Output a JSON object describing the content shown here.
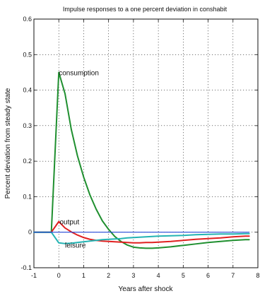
{
  "chart_data": {
    "type": "line",
    "title": "Impulse responses to a one percent deviation in conshabit",
    "xlabel": "Years after shock",
    "ylabel": "Percent deviation from steady state",
    "xlim": [
      -1,
      8
    ],
    "ylim": [
      -0.1,
      0.6
    ],
    "xticks": [
      -1,
      0,
      1,
      2,
      3,
      4,
      5,
      6,
      7,
      8
    ],
    "xtick_labels": [
      "-1",
      "0",
      "1",
      "2",
      "3",
      "4",
      "5",
      "6",
      "7",
      "8"
    ],
    "yticks": [
      -0.1,
      0,
      0.1,
      0.2,
      0.3,
      0.4,
      0.5,
      0.6
    ],
    "ytick_labels": [
      "-0.1",
      "0",
      "0.1",
      "0.2",
      "0.3",
      "0.4",
      "0.5",
      "0.6"
    ],
    "grid": true,
    "zero_line": true,
    "annotations": [
      {
        "text": "consumption",
        "x": 0.0,
        "y": 0.45
      },
      {
        "text": "output",
        "x": -0.05,
        "y": 0.03
      },
      {
        "text": "leisure",
        "x": 0.25,
        "y": -0.035
      }
    ],
    "series": [
      {
        "color": "#1f8f2f",
        "x": [
          -1,
          -0.3,
          0,
          0.25,
          0.5,
          0.75,
          1,
          1.25,
          1.5,
          1.75,
          2,
          2.25,
          2.5,
          2.75,
          3,
          3.25,
          3.5,
          3.75,
          4,
          4.5,
          5,
          5.5,
          6,
          6.5,
          7,
          7.5,
          7.65
        ],
        "y": [
          0.0,
          0.0,
          0.45,
          0.39,
          0.29,
          0.215,
          0.155,
          0.105,
          0.065,
          0.032,
          0.008,
          -0.012,
          -0.026,
          -0.036,
          -0.042,
          -0.044,
          -0.045,
          -0.045,
          -0.044,
          -0.041,
          -0.037,
          -0.033,
          -0.029,
          -0.026,
          -0.023,
          -0.021,
          -0.021
        ]
      },
      {
        "color": "#e02020",
        "x": [
          -1,
          -0.3,
          0,
          0.25,
          0.5,
          0.75,
          1,
          1.25,
          1.5,
          1.75,
          2,
          2.25,
          2.5,
          2.75,
          3,
          3.25,
          3.5,
          3.75,
          4,
          4.5,
          5,
          5.5,
          6,
          6.5,
          7,
          7.5,
          7.65
        ],
        "y": [
          0.0,
          0.0,
          0.03,
          0.012,
          0.001,
          -0.008,
          -0.015,
          -0.02,
          -0.023,
          -0.025,
          -0.026,
          -0.027,
          -0.028,
          -0.029,
          -0.03,
          -0.03,
          -0.029,
          -0.029,
          -0.028,
          -0.026,
          -0.023,
          -0.02,
          -0.018,
          -0.016,
          -0.013,
          -0.011,
          -0.011
        ]
      },
      {
        "color": "#23b3b3",
        "x": [
          -1,
          -0.3,
          0,
          0.25,
          0.5,
          0.75,
          1,
          1.25,
          1.5,
          1.75,
          2,
          2.25,
          2.5,
          2.75,
          3,
          3.5,
          4,
          4.5,
          5,
          5.5,
          6,
          6.5,
          7,
          7.5,
          7.65
        ],
        "y": [
          0.0,
          0.0,
          -0.03,
          -0.032,
          -0.031,
          -0.029,
          -0.027,
          -0.025,
          -0.023,
          -0.021,
          -0.02,
          -0.019,
          -0.018,
          -0.016,
          -0.015,
          -0.013,
          -0.011,
          -0.01,
          -0.009,
          -0.007,
          -0.006,
          -0.005,
          -0.005,
          -0.004,
          -0.004
        ]
      },
      {
        "color": "#2448d8",
        "x": [
          -1,
          7.65
        ],
        "y": [
          0.0,
          0.0
        ]
      }
    ]
  }
}
